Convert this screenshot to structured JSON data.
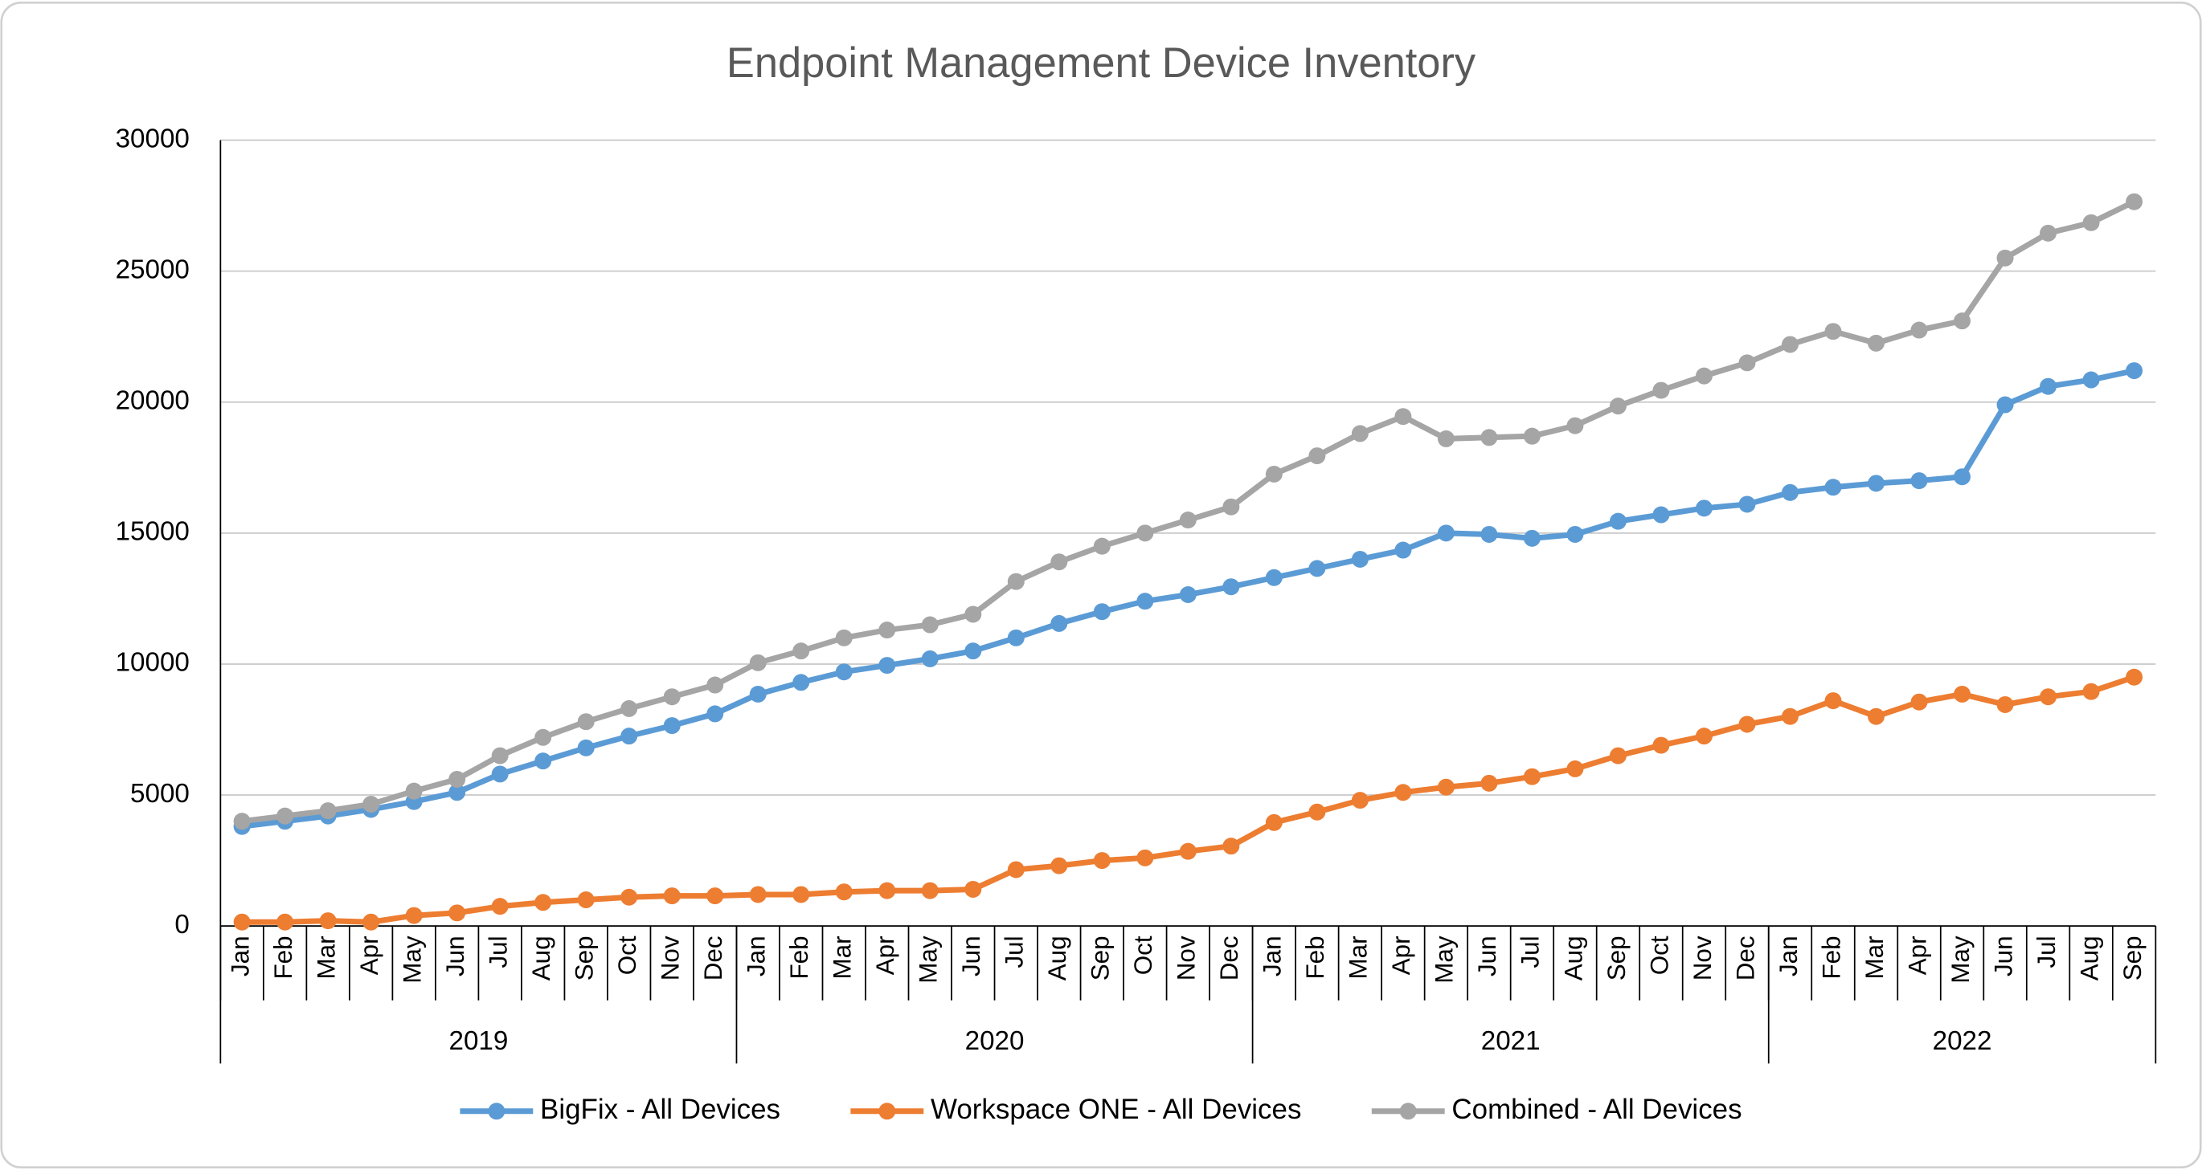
{
  "chart_data": {
    "type": "line",
    "title": "Endpoint Management Device Inventory",
    "categories": [
      "Jan",
      "Feb",
      "Mar",
      "Apr",
      "May",
      "Jun",
      "Jul",
      "Aug",
      "Sep",
      "Oct",
      "Nov",
      "Dec",
      "Jan",
      "Feb",
      "Mar",
      "Apr",
      "May",
      "Jun",
      "Jul",
      "Aug",
      "Sep",
      "Oct",
      "Nov",
      "Dec",
      "Jan",
      "Feb",
      "Mar",
      "Apr",
      "May",
      "Jun",
      "Jul",
      "Aug",
      "Sep",
      "Oct",
      "Nov",
      "Dec",
      "Jan",
      "Feb",
      "Mar",
      "Apr",
      "May",
      "Jun",
      "Jul",
      "Aug",
      "Sep"
    ],
    "years": [
      "2019",
      "2020",
      "2021",
      "2022"
    ],
    "series": [
      {
        "name": "BigFix - All Devices",
        "color": "#5b9bd5",
        "values": [
          3800,
          4000,
          4200,
          4450,
          4750,
          5100,
          5800,
          6300,
          6800,
          7250,
          7650,
          8100,
          8850,
          9300,
          9700,
          9950,
          10200,
          10500,
          11000,
          11550,
          12000,
          12400,
          12650,
          12950,
          13300,
          13650,
          14000,
          14350,
          15000,
          14950,
          14800,
          14950,
          15450,
          15700,
          15950,
          16100,
          16550,
          16750,
          16900,
          17000,
          17150,
          19900,
          20600,
          20850,
          21200
        ]
      },
      {
        "name": "Workspace ONE - All Devices",
        "color": "#ed7d31",
        "values": [
          150,
          150,
          200,
          150,
          400,
          500,
          750,
          900,
          1000,
          1100,
          1150,
          1150,
          1200,
          1200,
          1300,
          1350,
          1350,
          1400,
          2150,
          2300,
          2500,
          2600,
          2850,
          3050,
          3950,
          4350,
          4800,
          5100,
          5300,
          5450,
          5700,
          6000,
          6500,
          6900,
          7250,
          7700,
          8000,
          8600,
          8000,
          8550,
          8850,
          8450,
          8750,
          8950,
          9500
        ]
      },
      {
        "name": "Combined - All Devices",
        "color": "#a5a5a5",
        "values": [
          4000,
          4200,
          4400,
          4650,
          5150,
          5600,
          6500,
          7200,
          7800,
          8300,
          8750,
          9200,
          10050,
          10500,
          11000,
          11300,
          11500,
          11900,
          13150,
          13900,
          14500,
          15000,
          15500,
          16000,
          17250,
          17950,
          18800,
          19450,
          18600,
          18650,
          18700,
          19100,
          19850,
          20450,
          21000,
          21500,
          22200,
          22700,
          22250,
          22750,
          23100,
          25500,
          26450,
          26850,
          27650
        ]
      }
    ],
    "ylim": [
      0,
      30000
    ],
    "yticks": [
      0,
      5000,
      10000,
      15000,
      20000,
      25000,
      30000
    ],
    "grid": true,
    "legend": "bottom"
  }
}
